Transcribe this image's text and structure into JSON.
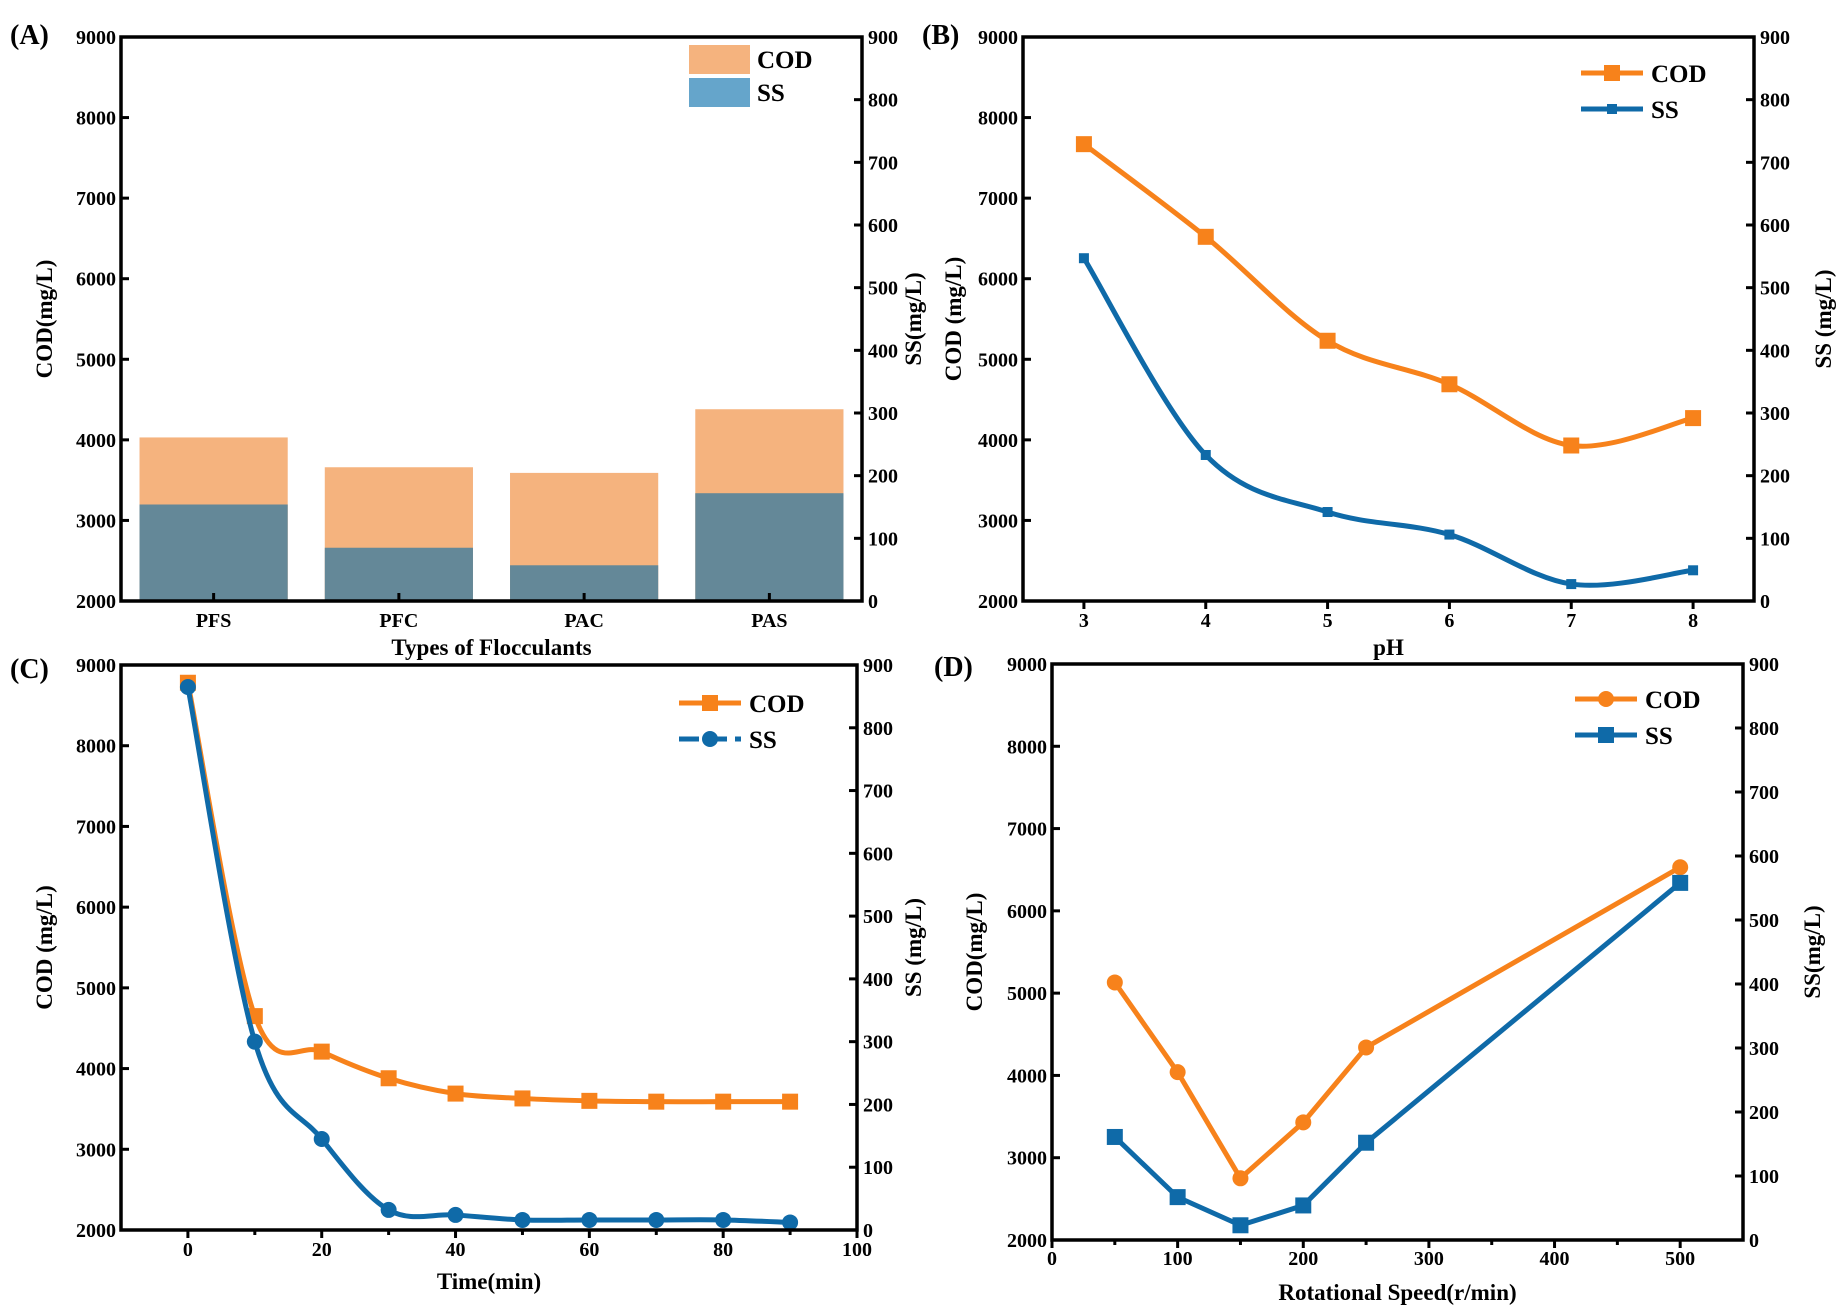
{
  "colors": {
    "cod": "#f7821b",
    "ss": "#0f6aa8",
    "cod_bar": "#f5b37e",
    "ss_bar": "#648898",
    "ss_bar_legend": "#65a5cb"
  },
  "chart_data": [
    {
      "panel": "(A)",
      "type": "bar",
      "xlabel": "Types of Flocculants",
      "ylabel": "COD(mg/L)",
      "ylabel_right": "SS(mg/L)",
      "categories": [
        "PFS",
        "PFC",
        "PAC",
        "PAS"
      ],
      "ylim": [
        2000,
        9000
      ],
      "ylim_right": [
        0,
        900
      ],
      "yticks": [
        2000,
        3000,
        4000,
        5000,
        6000,
        7000,
        8000,
        9000
      ],
      "yticks_right": [
        0,
        100,
        200,
        300,
        400,
        500,
        600,
        700,
        800,
        900
      ],
      "legend_position": "top-right",
      "series": [
        {
          "name": "COD",
          "axis": "left",
          "values": [
            4030,
            3660,
            3590,
            4380
          ]
        },
        {
          "name": "SS",
          "axis": "right",
          "values": [
            154,
            85,
            57,
            172
          ]
        }
      ]
    },
    {
      "panel": "(B)",
      "type": "line",
      "smooth": true,
      "xlabel": "pH",
      "ylabel": "COD (mg/L)",
      "ylabel_right": "SS (mg/L)",
      "x": [
        3,
        4,
        5,
        6,
        7,
        8
      ],
      "xlim": [
        2.5,
        8.5
      ],
      "xticks": [
        3,
        4,
        5,
        6,
        7,
        8
      ],
      "ylim": [
        2000,
        9000
      ],
      "ylim_right": [
        0,
        900
      ],
      "yticks": [
        2000,
        3000,
        4000,
        5000,
        6000,
        7000,
        8000,
        9000
      ],
      "yticks_right": [
        0,
        100,
        200,
        300,
        400,
        500,
        600,
        700,
        800,
        900
      ],
      "legend_position": "top-right",
      "series": [
        {
          "name": "COD",
          "axis": "left",
          "marker": "square",
          "values": [
            7670,
            6520,
            5230,
            4690,
            3930,
            4270
          ]
        },
        {
          "name": "SS",
          "axis": "right",
          "marker": "small-square",
          "values": [
            547,
            233,
            142,
            106,
            27,
            49
          ]
        }
      ]
    },
    {
      "panel": "(C)",
      "type": "line",
      "smooth": true,
      "xlabel": "Time(min)",
      "ylabel": "COD (mg/L)",
      "ylabel_right": "SS (mg/L)",
      "x": [
        0,
        10,
        20,
        30,
        40,
        50,
        60,
        70,
        80,
        90
      ],
      "xlim": [
        -10,
        100
      ],
      "xticks": [
        0,
        20,
        40,
        60,
        80,
        100
      ],
      "ylim": [
        2000,
        9000
      ],
      "ylim_right": [
        0,
        900
      ],
      "yticks": [
        2000,
        3000,
        4000,
        5000,
        6000,
        7000,
        8000,
        9000
      ],
      "yticks_right": [
        0,
        100,
        200,
        300,
        400,
        500,
        600,
        700,
        800,
        900
      ],
      "legend_position": "top-right",
      "series": [
        {
          "name": "COD",
          "axis": "left",
          "marker": "square",
          "values": [
            8780,
            4650,
            4210,
            3880,
            3690,
            3630,
            3600,
            3590,
            3590,
            3590
          ]
        },
        {
          "name": "SS",
          "axis": "right",
          "marker": "circle",
          "values": [
            865,
            300,
            145,
            32,
            24,
            16,
            16,
            16,
            16,
            12
          ]
        }
      ]
    },
    {
      "panel": "(D)",
      "type": "line",
      "smooth": false,
      "xlabel": "Rotational Speed(r/min)",
      "ylabel": "COD(mg/L)",
      "ylabel_right": "SS(mg/L)",
      "x": [
        50,
        100,
        150,
        200,
        250,
        500
      ],
      "xlim": [
        0,
        550
      ],
      "xticks": [
        0,
        100,
        200,
        300,
        400,
        500
      ],
      "ylim": [
        2000,
        9000
      ],
      "ylim_right": [
        0,
        900
      ],
      "yticks": [
        2000,
        3000,
        4000,
        5000,
        6000,
        7000,
        8000,
        9000
      ],
      "yticks_right": [
        0,
        100,
        200,
        300,
        400,
        500,
        600,
        700,
        800,
        900
      ],
      "legend_position": "top-right",
      "series": [
        {
          "name": "COD",
          "axis": "left",
          "marker": "circle",
          "values": [
            5130,
            4040,
            2750,
            3430,
            4340,
            6530
          ]
        },
        {
          "name": "SS",
          "axis": "right",
          "marker": "square",
          "values": [
            161,
            67,
            23,
            54,
            152,
            558
          ]
        }
      ]
    }
  ]
}
